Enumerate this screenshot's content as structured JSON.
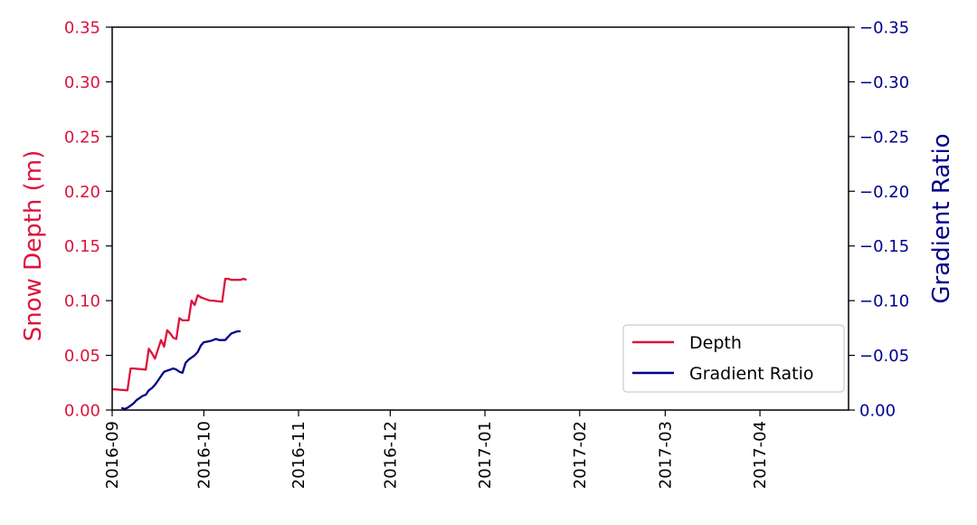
{
  "chart_data": {
    "type": "line",
    "title": "",
    "xlabel": "",
    "ylabel": "Snow Depth (m)",
    "y2label": "Gradient Ratio",
    "xlim": [
      "2016-09-01",
      "2017-04-30"
    ],
    "ylim": [
      0,
      0.35
    ],
    "y2lim": [
      0,
      -0.35
    ],
    "y2_inverted": true,
    "grid": false,
    "legend_position": "lower-right",
    "x_ticks": [
      "2016-09",
      "2016-10",
      "2016-11",
      "2016-12",
      "2017-01",
      "2017-02",
      "2017-03",
      "2017-04"
    ],
    "x_tick_dates": [
      "2016-09-01",
      "2016-10-01",
      "2016-11-01",
      "2016-12-01",
      "2017-01-01",
      "2017-02-01",
      "2017-03-01",
      "2017-04-01"
    ],
    "y_ticks": [
      "0.00",
      "0.05",
      "0.10",
      "0.15",
      "0.20",
      "0.25",
      "0.30",
      "0.35"
    ],
    "y_tick_values": [
      0,
      0.05,
      0.1,
      0.15,
      0.2,
      0.25,
      0.3,
      0.35
    ],
    "y2_ticks": [
      "0.00",
      "−0.05",
      "−0.10",
      "−0.15",
      "−0.20",
      "−0.25",
      "−0.30",
      "−0.35"
    ],
    "y2_tick_values": [
      0,
      -0.05,
      -0.1,
      -0.15,
      -0.2,
      -0.25,
      -0.3,
      -0.35
    ],
    "colors": {
      "depth": "#dc143c",
      "gradient": "#00008b",
      "axis": "#000000"
    },
    "series": [
      {
        "name": "Depth",
        "axis": "left",
        "color": "#dc143c",
        "x": [
          "2016-09-01",
          "2016-09-06",
          "2016-09-07",
          "2016-09-08",
          "2016-09-12",
          "2016-09-13",
          "2016-09-14",
          "2016-09-15",
          "2016-09-17",
          "2016-09-18",
          "2016-09-19",
          "2016-09-20",
          "2016-09-21",
          "2016-09-22",
          "2016-09-23",
          "2016-09-24",
          "2016-09-26",
          "2016-09-27",
          "2016-09-28",
          "2016-09-29",
          "2016-09-30",
          "2016-10-01",
          "2016-10-02",
          "2016-10-03",
          "2016-10-04",
          "2016-10-07",
          "2016-10-08",
          "2016-10-09",
          "2016-10-10",
          "2016-10-11",
          "2016-10-12",
          "2016-10-13",
          "2016-10-14",
          "2016-10-15"
        ],
        "y": [
          0.019,
          0.018,
          0.038,
          0.038,
          0.037,
          0.056,
          0.052,
          0.047,
          0.064,
          0.058,
          0.073,
          0.07,
          0.066,
          0.065,
          0.084,
          0.082,
          0.082,
          0.1,
          0.096,
          0.105,
          0.103,
          0.102,
          0.101,
          0.1,
          0.1,
          0.099,
          0.12,
          0.12,
          0.119,
          0.119,
          0.119,
          0.119,
          0.12,
          0.119
        ]
      },
      {
        "name": "Gradient Ratio",
        "axis": "right",
        "color": "#00008b",
        "x": [
          "2016-09-04",
          "2016-09-05",
          "2016-09-06",
          "2016-09-08",
          "2016-09-09",
          "2016-09-10",
          "2016-09-11",
          "2016-09-12",
          "2016-09-13",
          "2016-09-14",
          "2016-09-15",
          "2016-09-16",
          "2016-09-17",
          "2016-09-18",
          "2016-09-19",
          "2016-09-20",
          "2016-09-21",
          "2016-09-22",
          "2016-09-23",
          "2016-09-24",
          "2016-09-25",
          "2016-09-26",
          "2016-09-28",
          "2016-09-29",
          "2016-09-30",
          "2016-10-01",
          "2016-10-03",
          "2016-10-04",
          "2016-10-05",
          "2016-10-06",
          "2016-10-08",
          "2016-10-09",
          "2016-10-10",
          "2016-10-11",
          "2016-10-12",
          "2016-10-13"
        ],
        "y": [
          -0.002,
          -0.001,
          -0.002,
          -0.006,
          -0.009,
          -0.011,
          -0.013,
          -0.014,
          -0.018,
          -0.02,
          -0.023,
          -0.027,
          -0.031,
          -0.035,
          -0.036,
          -0.037,
          -0.038,
          -0.037,
          -0.035,
          -0.034,
          -0.043,
          -0.046,
          -0.05,
          -0.053,
          -0.059,
          -0.062,
          -0.063,
          -0.064,
          -0.065,
          -0.064,
          -0.064,
          -0.067,
          -0.07,
          -0.071,
          -0.072,
          -0.072
        ]
      }
    ]
  }
}
